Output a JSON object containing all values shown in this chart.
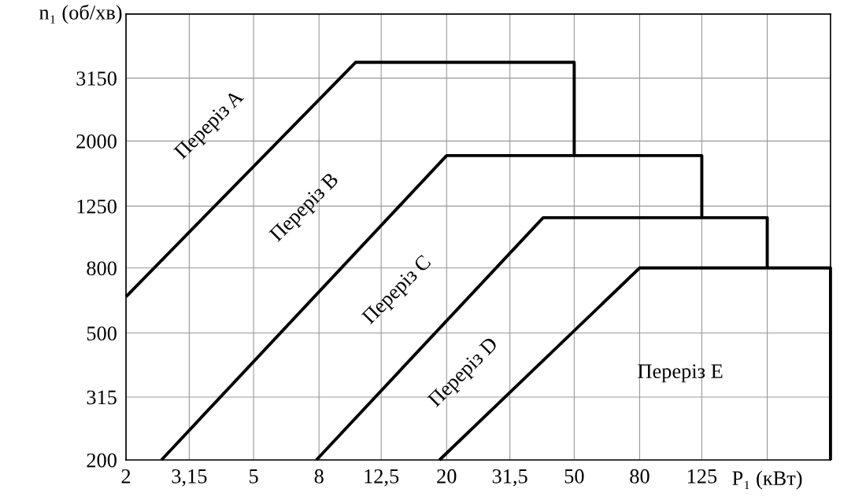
{
  "chart_data": {
    "type": "line",
    "log": "xy",
    "xlabel": "P₁ (кВт)",
    "ylabel": "n₁ (об/хв)",
    "xlim": [
      2,
      315
    ],
    "ylim": [
      200,
      5000
    ],
    "xticks": [
      2,
      {
        "value": 3.15,
        "label": "3,15"
      },
      5,
      8,
      {
        "value": 12.5,
        "label": "12,5"
      },
      20,
      {
        "value": 31.5,
        "label": "31,5"
      },
      50,
      80,
      125,
      {
        "value": 200,
        "label": null
      }
    ],
    "yticks": [
      200,
      315,
      500,
      800,
      1250,
      2000,
      3150
    ],
    "grid": true,
    "line_style": "solid",
    "marker": "none",
    "series": [
      {
        "color": "#000000",
        "x": [
          2,
          10.4,
          50,
          50
        ],
        "values": [
          650,
          3530,
          3530,
          1800
        ]
      },
      {
        "color": "#000000",
        "x": [
          2.58,
          20,
          125,
          125
        ],
        "values": [
          200,
          1800,
          1800,
          1150
        ]
      },
      {
        "color": "#000000",
        "x": [
          7.85,
          40,
          200,
          200
        ],
        "values": [
          200,
          1150,
          1150,
          800
        ]
      },
      {
        "color": "#000000",
        "x": [
          19,
          80,
          315,
          315
        ],
        "values": [
          200,
          800,
          800,
          200
        ]
      }
    ],
    "annotations": [
      "Переріз A",
      "Переріз B",
      "Переріз C",
      "Переріз D",
      "Переріз E"
    ]
  }
}
